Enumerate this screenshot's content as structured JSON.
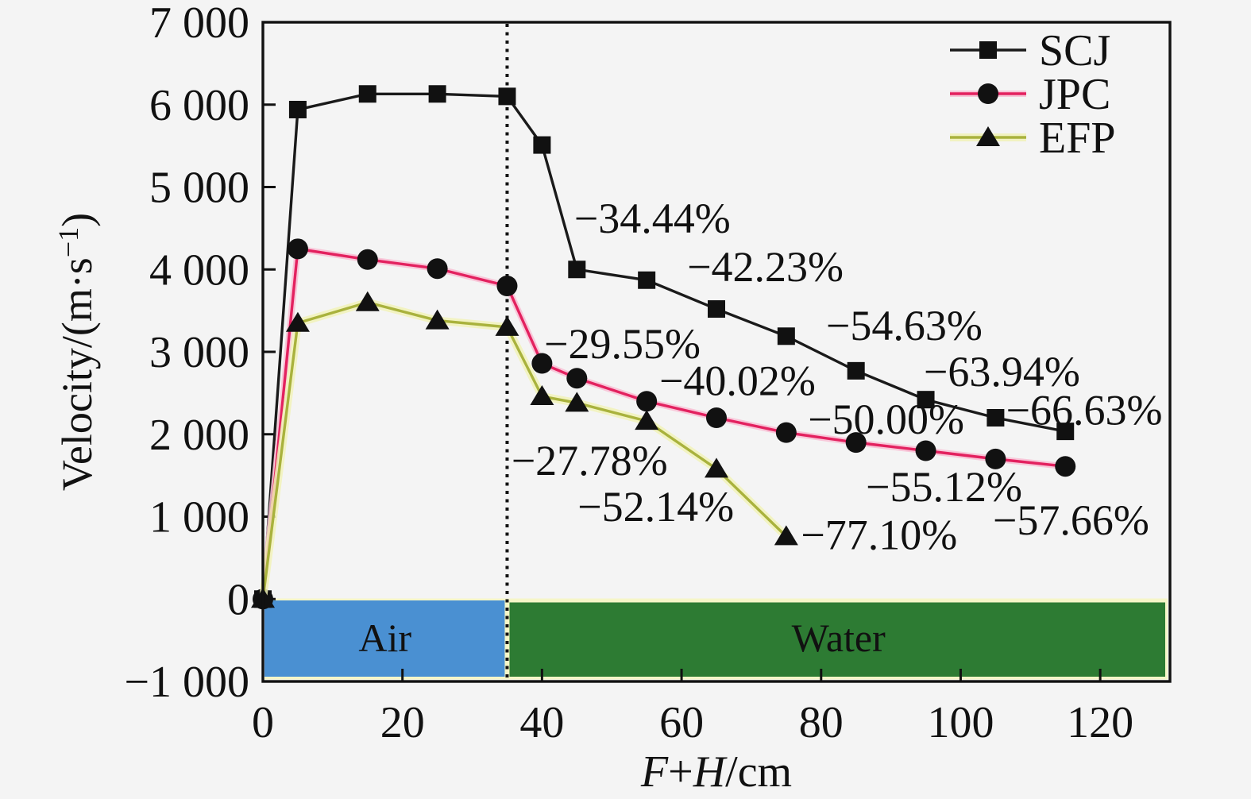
{
  "chart_data": {
    "type": "line",
    "title": "",
    "xlabel": "F+H/cm",
    "xlabel_parts": {
      "italic1": "F",
      "plus": "+",
      "italic2": "H",
      "rest": "/cm"
    },
    "ylabel": "Velocity/(m·s−1)",
    "ylabel_parts": {
      "pre": "Velocity/(m·s",
      "sup": "−1",
      "post": ")"
    },
    "x_range": [
      0,
      130
    ],
    "y_range": [
      -1000,
      7000
    ],
    "grid": false,
    "legend_position": "top-right",
    "x_ticks": [
      {
        "v": 0,
        "label": "0"
      },
      {
        "v": 20,
        "label": "20"
      },
      {
        "v": 40,
        "label": "40"
      },
      {
        "v": 60,
        "label": "60"
      },
      {
        "v": 80,
        "label": "80"
      },
      {
        "v": 100,
        "label": "100"
      },
      {
        "v": 120,
        "label": "120"
      }
    ],
    "y_ticks": [
      {
        "v": -1000,
        "label": "−1 000"
      },
      {
        "v": 0,
        "label": "0"
      },
      {
        "v": 1000,
        "label": "1 000"
      },
      {
        "v": 2000,
        "label": "2 000"
      },
      {
        "v": 3000,
        "label": "3 000"
      },
      {
        "v": 4000,
        "label": "4 000"
      },
      {
        "v": 5000,
        "label": "5 000"
      },
      {
        "v": 6000,
        "label": "6 000"
      },
      {
        "v": 7000,
        "label": "7 000"
      }
    ],
    "series": [
      {
        "name": "SCJ",
        "marker": "square",
        "color": "#1a1a1a",
        "halo": null,
        "halo_width": 0,
        "x": [
          0,
          5,
          15,
          25,
          35,
          40,
          45,
          55,
          65,
          75,
          85,
          95,
          105,
          115
        ],
        "y": [
          0,
          5940,
          6130,
          6130,
          6100,
          5510,
          4000,
          3870,
          3520,
          3190,
          2770,
          2420,
          2200,
          2035
        ]
      },
      {
        "name": "JPC",
        "marker": "circle",
        "color": "#e3215f",
        "halo": "#f8bed4",
        "halo_width": 8,
        "x": [
          0,
          5,
          15,
          25,
          35,
          40,
          45,
          55,
          65,
          75,
          85,
          95,
          105,
          115
        ],
        "y": [
          0,
          4250,
          4120,
          4010,
          3800,
          2860,
          2680,
          2400,
          2200,
          2020,
          1900,
          1800,
          1700,
          1610
        ]
      },
      {
        "name": "EFP",
        "marker": "triangle",
        "color": "#a9b23d",
        "halo": "#f1f2b8",
        "halo_width": 10,
        "x": [
          0,
          5,
          15,
          25,
          35,
          40,
          45,
          55,
          65,
          75
        ],
        "y": [
          0,
          3350,
          3600,
          3380,
          3300,
          2460,
          2380,
          2160,
          1580,
          760
        ]
      }
    ],
    "marker_color": "#111111",
    "annotations": [
      {
        "text": "−34.44%",
        "x": 44.6,
        "y": 4620
      },
      {
        "text": "−42.23%",
        "x": 60.8,
        "y": 4030
      },
      {
        "text": "−54.63%",
        "x": 80.7,
        "y": 3320
      },
      {
        "text": "−63.94%",
        "x": 94.7,
        "y": 2760
      },
      {
        "text": "−66.63%",
        "x": 106.5,
        "y": 2290
      },
      {
        "text": "−29.55%",
        "x": 40.3,
        "y": 3095
      },
      {
        "text": "−40.02%",
        "x": 56.8,
        "y": 2650
      },
      {
        "text": "−50.00%",
        "x": 78.1,
        "y": 2180
      },
      {
        "text": "−55.12%",
        "x": 86.4,
        "y": 1360
      },
      {
        "text": "−57.66%",
        "x": 104.6,
        "y": 955
      },
      {
        "text": "−27.78%",
        "x": 35.6,
        "y": 1680
      },
      {
        "text": "−52.14%",
        "x": 45.1,
        "y": 1120
      },
      {
        "text": "−77.10%",
        "x": 77.1,
        "y": 780
      }
    ],
    "bands": {
      "border_color": "#f6f6c8",
      "divider_x": 35,
      "label_color": "#ffffff",
      "regions": [
        {
          "label": "Air",
          "color": "#4a90d2",
          "x0": 0,
          "x1": 35
        },
        {
          "label": "Water",
          "color": "#2d7b33",
          "x0": 35,
          "x1": 130
        }
      ]
    },
    "legend": {
      "items": [
        {
          "label": "SCJ"
        },
        {
          "label": "JPC"
        },
        {
          "label": "EFP"
        }
      ]
    }
  }
}
